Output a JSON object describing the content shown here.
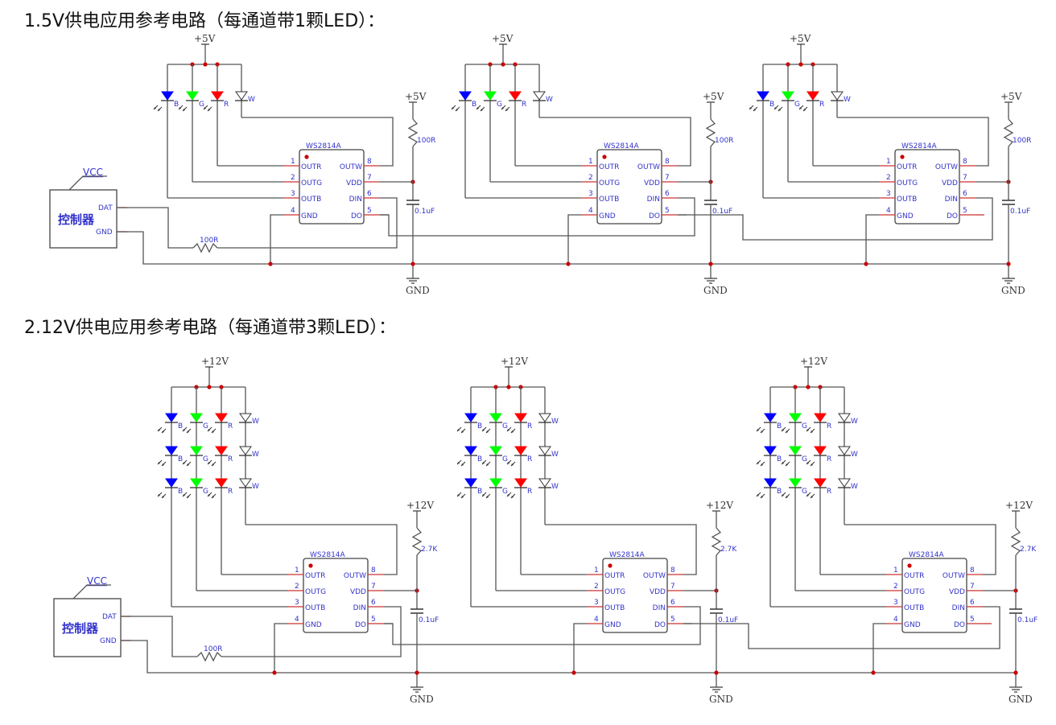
{
  "sections": [
    {
      "title": "1.5V供电应用参考电路（每通道带1颗LED）：",
      "supply_label": "+5V",
      "led_rows": 1,
      "pullup_resistor": "100R",
      "capacitor": "0.1uF",
      "gnd_label": "GND",
      "chip_name": "WS2814A",
      "data_resistor": "100R"
    },
    {
      "title": "2.12V供电应用参考电路（每通道带3颗LED）：",
      "supply_label": "+12V",
      "led_rows": 3,
      "pullup_resistor": "2.7K",
      "capacitor": "0.1uF",
      "gnd_label": "GND",
      "chip_name": "WS2814A",
      "data_resistor": "100R"
    }
  ],
  "controller": {
    "name": "控制器",
    "vcc": "VCC",
    "dat": "DAT",
    "gnd": "GND"
  },
  "chip_pins": {
    "left": [
      {
        "num": "1",
        "name": "OUTR"
      },
      {
        "num": "2",
        "name": "OUTG"
      },
      {
        "num": "3",
        "name": "OUTB"
      },
      {
        "num": "4",
        "name": "GND"
      }
    ],
    "right": [
      {
        "num": "8",
        "name": "OUTW"
      },
      {
        "num": "7",
        "name": "VDD"
      },
      {
        "num": "6",
        "name": "DIN"
      },
      {
        "num": "5",
        "name": "DO"
      }
    ]
  },
  "leds": [
    {
      "label": "B",
      "color": "#0000ff"
    },
    {
      "label": "G",
      "color": "#00ff00"
    },
    {
      "label": "R",
      "color": "#ff0000"
    },
    {
      "label": "W",
      "color": "#ffffff"
    }
  ],
  "colors": {
    "wire": "#555555",
    "junction": "#cc0000",
    "text": "#3333cc"
  }
}
